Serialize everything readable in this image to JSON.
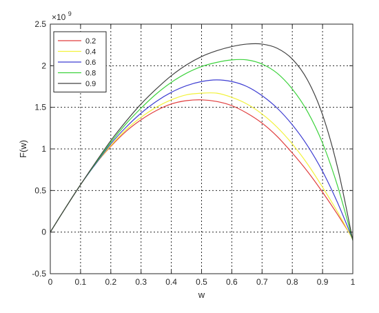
{
  "chart_data": {
    "type": "line",
    "xlabel": "w",
    "ylabel": "F(w)",
    "y_multiplier": "×10",
    "y_exponent": "9",
    "xlim": [
      0,
      1
    ],
    "ylim": [
      -0.5,
      2.5
    ],
    "x_ticks": [
      "0",
      "0.1",
      "0.2",
      "0.3",
      "0.4",
      "0.5",
      "0.6",
      "0.7",
      "0.8",
      "0.9",
      "1"
    ],
    "y_ticks": [
      "-0.5",
      "0",
      "0.5",
      "1",
      "1.5",
      "2",
      "2.5"
    ],
    "grid": true,
    "legend_position": "top-left",
    "x": [
      0,
      0.05,
      0.1,
      0.15,
      0.2,
      0.25,
      0.3,
      0.35,
      0.4,
      0.45,
      0.5,
      0.55,
      0.6,
      0.65,
      0.7,
      0.75,
      0.8,
      0.85,
      0.9,
      0.95,
      1.0
    ],
    "series": [
      {
        "name": "0.2",
        "color": "#e03c3c",
        "values": [
          0,
          0.29,
          0.57,
          0.82,
          1.03,
          1.21,
          1.35,
          1.46,
          1.54,
          1.58,
          1.59,
          1.57,
          1.52,
          1.43,
          1.31,
          1.15,
          0.95,
          0.73,
          0.48,
          0.21,
          -0.08
        ]
      },
      {
        "name": "0.4",
        "color": "#f2f23a",
        "values": [
          0,
          0.29,
          0.57,
          0.82,
          1.04,
          1.23,
          1.38,
          1.5,
          1.59,
          1.65,
          1.67,
          1.67,
          1.62,
          1.54,
          1.42,
          1.26,
          1.06,
          0.82,
          0.54,
          0.24,
          -0.09
        ]
      },
      {
        "name": "0.6",
        "color": "#3c3cd2",
        "values": [
          0,
          0.29,
          0.57,
          0.82,
          1.06,
          1.26,
          1.43,
          1.57,
          1.68,
          1.76,
          1.81,
          1.83,
          1.81,
          1.75,
          1.64,
          1.49,
          1.29,
          1.04,
          0.73,
          0.35,
          -0.09
        ]
      },
      {
        "name": "0.8",
        "color": "#3cd23c",
        "values": [
          0,
          0.29,
          0.57,
          0.83,
          1.08,
          1.3,
          1.49,
          1.66,
          1.8,
          1.91,
          1.99,
          2.04,
          2.07,
          2.07,
          2.02,
          1.91,
          1.72,
          1.45,
          1.07,
          0.55,
          -0.1
        ]
      },
      {
        "name": "0.9",
        "color": "#404040",
        "values": [
          0,
          0.29,
          0.57,
          0.84,
          1.1,
          1.33,
          1.54,
          1.72,
          1.88,
          2.01,
          2.11,
          2.18,
          2.23,
          2.26,
          2.26,
          2.21,
          2.08,
          1.83,
          1.41,
          0.77,
          -0.1
        ]
      }
    ]
  }
}
